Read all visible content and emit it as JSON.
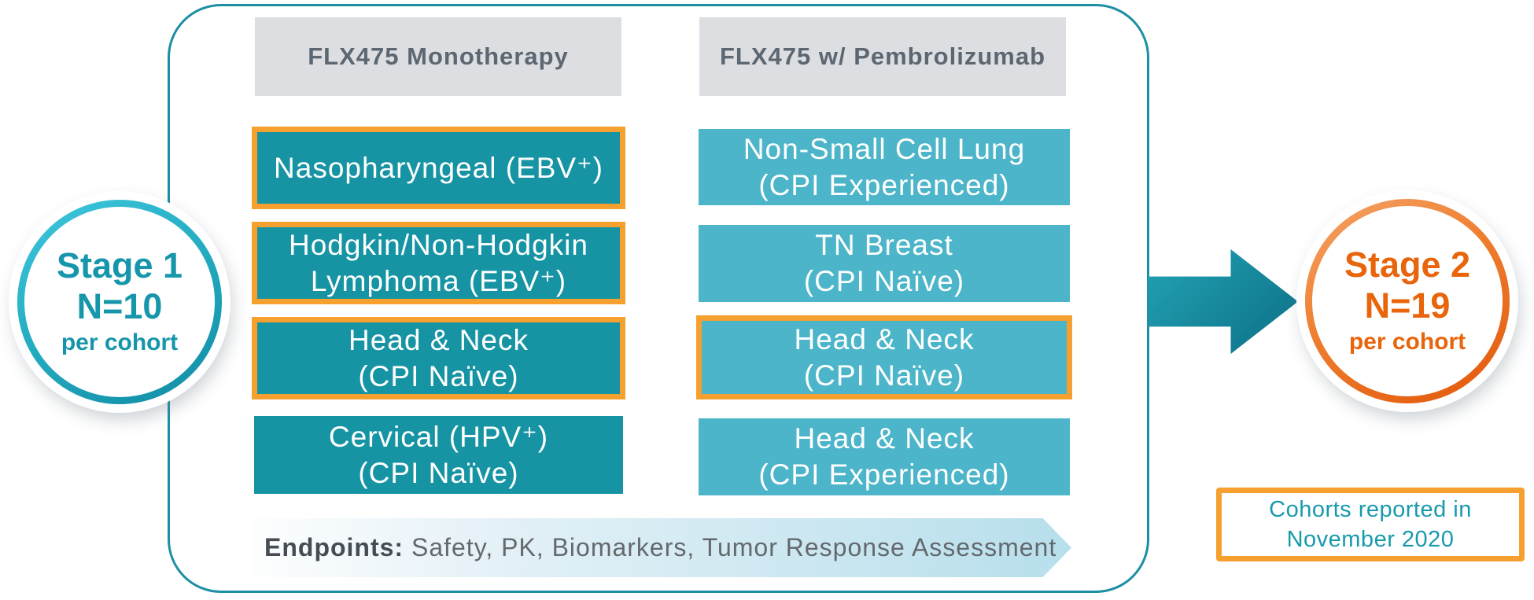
{
  "stage1": {
    "title": "Stage 1",
    "n": "N=10",
    "sub": "per cohort"
  },
  "stage2": {
    "title": "Stage 2",
    "n": "N=19",
    "sub": "per cohort"
  },
  "columns": [
    {
      "header": "FLX475 Monotherapy",
      "boxes": [
        {
          "lines": [
            "Nasopharyngeal (EBV⁺)"
          ],
          "highlighted": true
        },
        {
          "lines": [
            "Hodgkin/Non-Hodgkin",
            "Lymphoma (EBV⁺)"
          ],
          "highlighted": true
        },
        {
          "lines": [
            "Head & Neck",
            "(CPI Naïve)"
          ],
          "highlighted": true
        },
        {
          "lines": [
            "Cervical (HPV⁺)",
            "(CPI Naïve)"
          ],
          "highlighted": false
        }
      ]
    },
    {
      "header": "FLX475 w/ Pembrolizumab",
      "boxes": [
        {
          "lines": [
            "Non-Small Cell Lung",
            "(CPI Experienced)"
          ],
          "highlighted": false
        },
        {
          "lines": [
            "TN Breast",
            "(CPI Naïve)"
          ],
          "highlighted": false
        },
        {
          "lines": [
            "Head & Neck",
            "(CPI Naïve)"
          ],
          "highlighted": true
        },
        {
          "lines": [
            "Head & Neck",
            "(CPI Experienced)"
          ],
          "highlighted": false
        }
      ]
    }
  ],
  "endpoints": {
    "label": "Endpoints:",
    "text": " Safety, PK, Biomarkers, Tumor Response Assessment"
  },
  "report_note": {
    "line1": "Cohorts reported in",
    "line2": "November 2020"
  },
  "colors": {
    "teal_dark": "#1694a3",
    "teal_light": "#4cb5c9",
    "orange_highlight": "#f5a02f",
    "orange_text": "#e8650c",
    "teal_text": "#189aad",
    "frame_border": "#1d8fa4",
    "header_bg": "#dcdee1",
    "header_text": "#5d6771",
    "arrow_teal": "#0d7086",
    "banner_blue": "#b7dfec"
  }
}
